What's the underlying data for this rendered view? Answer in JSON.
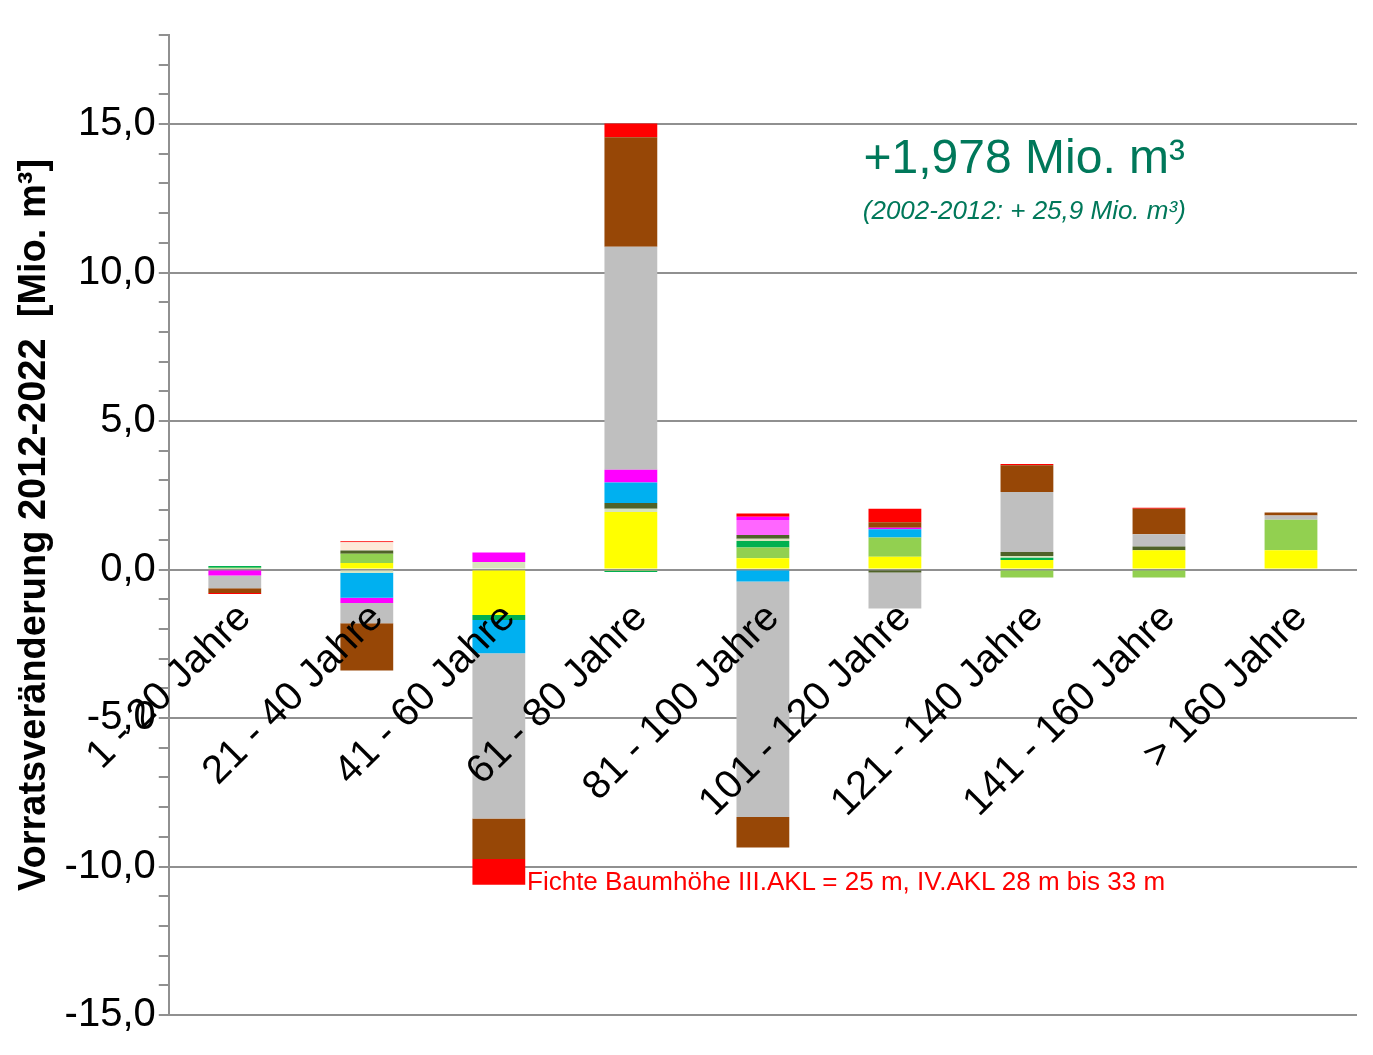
{
  "chart_data": {
    "type": "bar",
    "stacked": true,
    "ylabel": "Vorratsveränderung 2012-2022  [Mio. m³]",
    "categories": [
      "1 - 20 Jahre",
      "21 - 40 Jahre",
      "41 - 60 Jahre",
      "61 - 80 Jahre",
      "81 - 100 Jahre",
      "101 - 120 Jahre",
      "121 - 140 Jahre",
      "141 - 160 Jahre",
      "> 160 Jahre"
    ],
    "series": [
      {
        "color": "#ffff00",
        "values": [
          null,
          0.22,
          -1.53,
          1.94,
          0.38,
          0.43,
          0.32,
          0.65,
          0.65
        ]
      },
      {
        "color": "#92d050",
        "values": [
          0.06,
          0.31,
          null,
          -0.05,
          0.36,
          0.65,
          -0.27,
          -0.27,
          1.03
        ]
      },
      {
        "color": "#00b050",
        "values": [
          0.06,
          null,
          -0.17,
          -0.03,
          0.22,
          null,
          0.08,
          null,
          null
        ]
      },
      {
        "color": "#d8e4bc",
        "values": [
          null,
          -0.11,
          0.25,
          0.11,
          0.08,
          null,
          0.06,
          null,
          null
        ]
      },
      {
        "color": "#4f6228",
        "values": [
          null,
          0.11,
          null,
          0.19,
          0.12,
          -0.1,
          0.13,
          0.13,
          null
        ]
      },
      {
        "color": "#fde9d9",
        "values": [
          null,
          0.28,
          null,
          null,
          null,
          null,
          null,
          null,
          null
        ]
      },
      {
        "color": "#00b0f0",
        "values": [
          null,
          -0.84,
          -1.12,
          0.69,
          -0.4,
          0.28,
          null,
          null,
          null
        ]
      },
      {
        "color": "#ff66ff",
        "values": [
          null,
          null,
          null,
          null,
          0.51,
          null,
          null,
          null,
          null
        ]
      },
      {
        "color": "#ff00ff",
        "values": [
          -0.2,
          -0.18,
          0.32,
          0.43,
          0.11,
          0.05,
          null,
          null,
          null
        ]
      },
      {
        "color": "#bfbfbf",
        "values": [
          -0.43,
          -0.68,
          -5.56,
          7.51,
          -7.93,
          -1.21,
          2.02,
          0.41,
          0.14
        ]
      },
      {
        "color": "#974706",
        "values": [
          -0.16,
          -1.59,
          -1.37,
          3.69,
          -1.03,
          0.18,
          0.9,
          0.86,
          0.1
        ]
      },
      {
        "color": "#ff0000",
        "values": [
          -0.03,
          0.03,
          -0.86,
          0.46,
          0.11,
          0.46,
          0.04,
          0.03,
          null
        ]
      }
    ],
    "ylim": [
      -15,
      18
    ],
    "yticks": [
      {
        "value": -15,
        "label": "-15,0"
      },
      {
        "value": -14,
        "label": null
      },
      {
        "value": -13,
        "label": null
      },
      {
        "value": -12,
        "label": null
      },
      {
        "value": -11,
        "label": null
      },
      {
        "value": -10,
        "label": "-10,0"
      },
      {
        "value": -9,
        "label": null
      },
      {
        "value": -8,
        "label": null
      },
      {
        "value": -7,
        "label": null
      },
      {
        "value": -6,
        "label": null
      },
      {
        "value": -5,
        "label": "-5,0"
      },
      {
        "value": -4,
        "label": null
      },
      {
        "value": -3,
        "label": null
      },
      {
        "value": -2,
        "label": null
      },
      {
        "value": -1,
        "label": null
      },
      {
        "value": 0,
        "label": "0,0"
      },
      {
        "value": 1,
        "label": null
      },
      {
        "value": 2,
        "label": null
      },
      {
        "value": 3,
        "label": null
      },
      {
        "value": 4,
        "label": null
      },
      {
        "value": 5,
        "label": "5,0"
      },
      {
        "value": 6,
        "label": null
      },
      {
        "value": 7,
        "label": null
      },
      {
        "value": 8,
        "label": null
      },
      {
        "value": 9,
        "label": null
      },
      {
        "value": 10,
        "label": "10,0"
      },
      {
        "value": 11,
        "label": null
      },
      {
        "value": 12,
        "label": null
      },
      {
        "value": 13,
        "label": null
      },
      {
        "value": 14,
        "label": null
      },
      {
        "value": 15,
        "label": "15,0"
      },
      {
        "value": 16,
        "label": null
      },
      {
        "value": 17,
        "label": null
      },
      {
        "value": 18,
        "label": null
      }
    ],
    "grid": "y",
    "legend": false,
    "annotations": [
      "+1,978 Mio. m³",
      "(2002-2012: + 25,9 Mio. m³)",
      "Fichte Baumhöhe III.AKL = 25 m, IV.AKL 28 m bis 33 m"
    ]
  }
}
